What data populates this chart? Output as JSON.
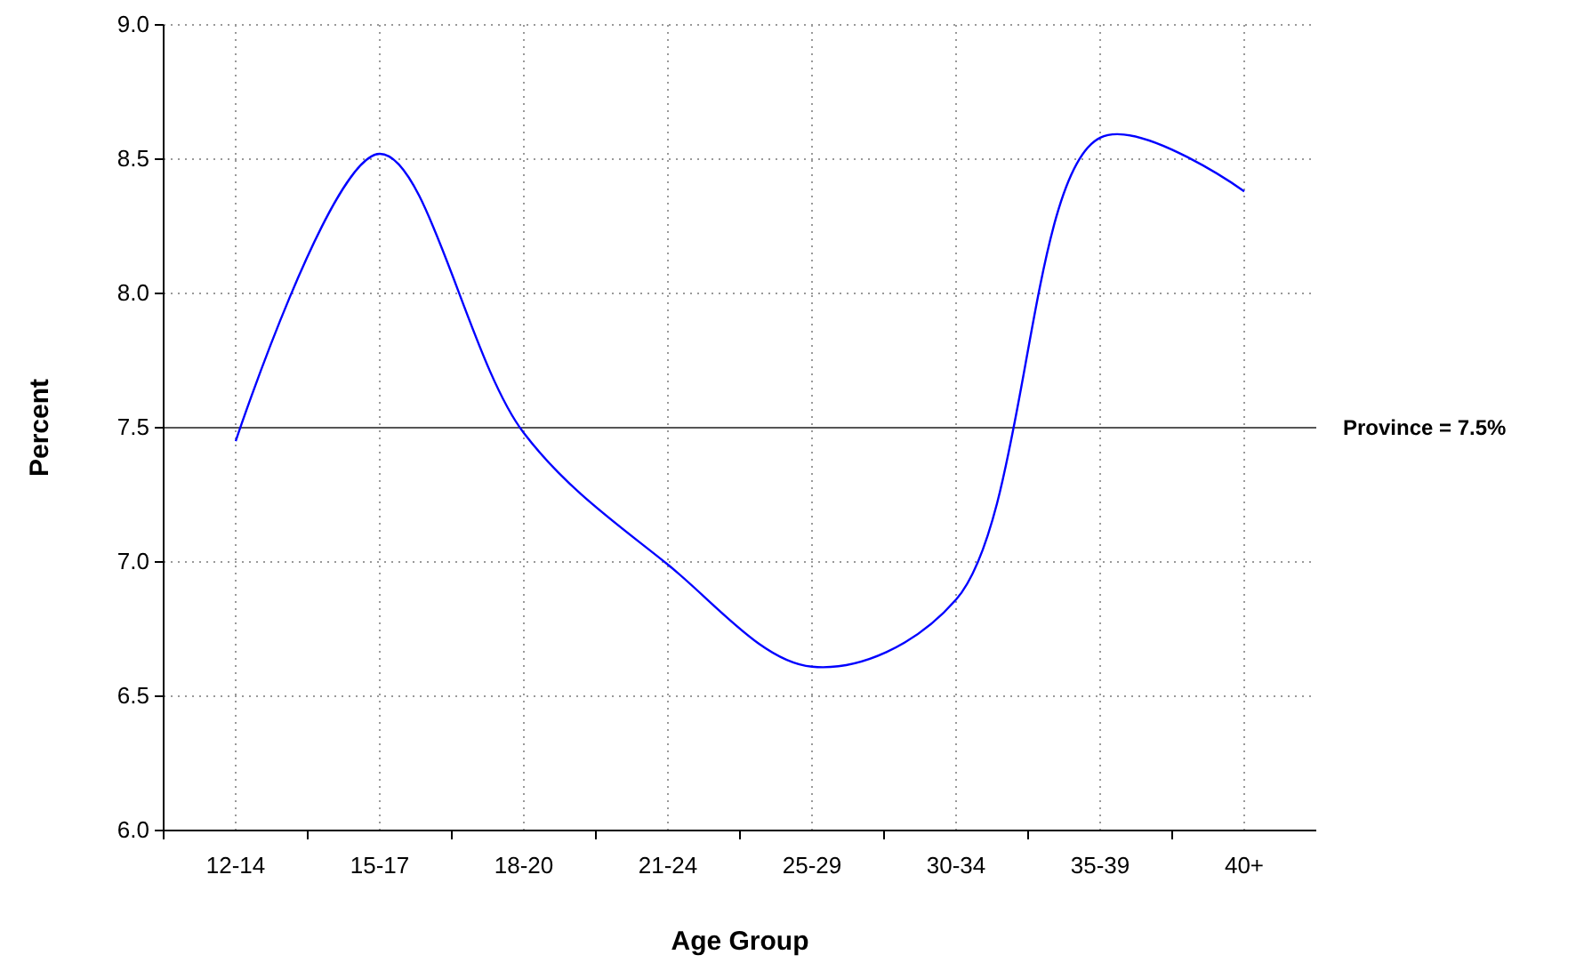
{
  "chart_data": {
    "type": "line",
    "xlabel": "Age Group",
    "ylabel": "Percent",
    "categories": [
      "12-14",
      "15-17",
      "18-20",
      "21-24",
      "25-29",
      "30-34",
      "35-39",
      "40+"
    ],
    "series": [
      {
        "color": "#0000ff",
        "values": [
          7.45,
          8.52,
          7.48,
          6.99,
          6.61,
          6.86,
          8.58,
          8.38
        ]
      }
    ],
    "ylim": [
      6.0,
      9.0
    ],
    "yticks": [
      {
        "value": 6,
        "label": "6.0"
      },
      {
        "value": 6.5,
        "label": "6.5"
      },
      {
        "value": 7,
        "label": "7.0"
      },
      {
        "value": 7.5,
        "label": "7.5"
      },
      {
        "value": 8,
        "label": "8.0"
      },
      {
        "value": 8.5,
        "label": "8.5"
      },
      {
        "value": 9,
        "label": "9.0"
      }
    ],
    "grid": true,
    "marker": "none",
    "line_style": "solid",
    "ref_lines": [
      {
        "axis": "y",
        "value": 7.5,
        "label": "Province = 7.5%",
        "color": "#555555"
      }
    ]
  }
}
